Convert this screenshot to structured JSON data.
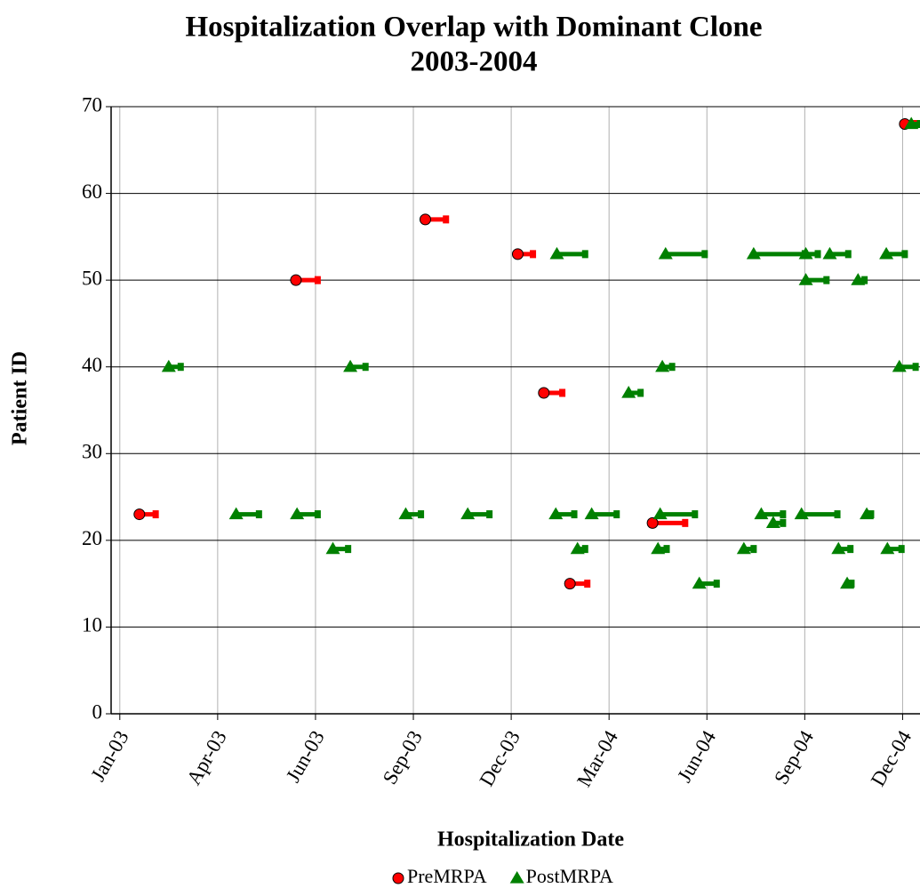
{
  "chart_data": {
    "type": "interval",
    "title": "Hospitalization Overlap with Dominant Clone",
    "subtitle": "2003-2004",
    "x_label": "Hospitalization Date",
    "y_label": "Patient ID",
    "xlim": [
      37614,
      38358
    ],
    "xticks": [
      {
        "value": 37622,
        "label": "Jan-03"
      },
      {
        "value": 37712,
        "label": "Apr-03"
      },
      {
        "value": 37802,
        "label": "Jun-03"
      },
      {
        "value": 37892,
        "label": "Sep-03"
      },
      {
        "value": 37982,
        "label": "Dec-03"
      },
      {
        "value": 38072,
        "label": "Mar-04"
      },
      {
        "value": 38162,
        "label": "Jun-04"
      },
      {
        "value": 38252,
        "label": "Sep-04"
      },
      {
        "value": 38342,
        "label": "Dec-04"
      }
    ],
    "ylim": [
      0,
      70
    ],
    "yticks": [
      0,
      10,
      20,
      30,
      40,
      50,
      60,
      70
    ],
    "grid": true,
    "legend": "bottom",
    "series": [
      {
        "name": "PreMRPA",
        "color": "#ff0000",
        "marker": "circle",
        "x": [
          37640,
          37784,
          37903,
          37988,
          38012,
          38036,
          38112,
          38344
        ],
        "x_end": [
          37655,
          37804,
          37922,
          38002,
          38029,
          38052,
          38142,
          38354
        ],
        "values": [
          23,
          50,
          57,
          53,
          37,
          15,
          22,
          68
        ]
      },
      {
        "name": "PostMRPA",
        "color": "#008000",
        "marker": "triangle",
        "x": [
          37667,
          37729,
          37785,
          37818,
          37834,
          37885,
          37942,
          38024,
          38023,
          38043,
          38056,
          38090,
          38117,
          38121,
          38119,
          38124,
          38155,
          38196,
          38205,
          38212,
          38223,
          38249,
          38253,
          38253,
          38275,
          38283,
          38291,
          38301,
          38309,
          38327,
          38328,
          38339,
          38350
        ],
        "x_end": [
          37678,
          37750,
          37804,
          37832,
          37848,
          37899,
          37962,
          38050,
          38040,
          38050,
          38079,
          38101,
          38125,
          38130,
          38151,
          38160,
          38171,
          38205,
          38252,
          38232,
          38232,
          38282,
          38264,
          38272,
          38292,
          38294,
          38295,
          38307,
          38313,
          38344,
          38341,
          38354,
          38358
        ],
        "values": [
          40,
          23,
          23,
          19,
          40,
          23,
          23,
          53,
          23,
          19,
          23,
          37,
          19,
          40,
          23,
          53,
          15,
          19,
          53,
          23,
          22,
          23,
          53,
          50,
          53,
          19,
          15,
          50,
          23,
          53,
          19,
          40,
          68
        ]
      }
    ]
  }
}
